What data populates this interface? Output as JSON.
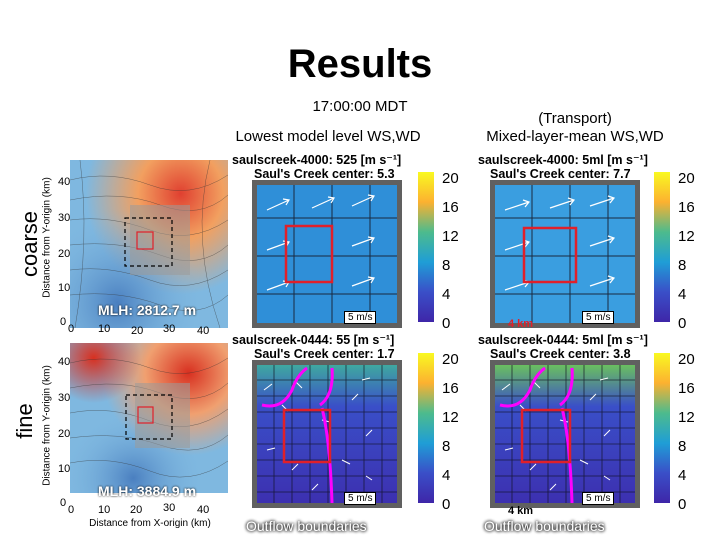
{
  "title": "Results",
  "time": "17:00:00 MDT",
  "columns": {
    "lowest": "Lowest model level WS,WD",
    "transport_line1": "(Transport)",
    "transport_line2": "Mixed-layer-mean WS,WD"
  },
  "rows": {
    "coarse": "coarse",
    "fine": "fine"
  },
  "axis": {
    "y_label": "Distance from Y-origin (km)",
    "x_label": "Distance from X-origin (km)",
    "ticks_coarse_y": [
      "40",
      "30",
      "20",
      "10",
      "0"
    ],
    "ticks_fine_y": [
      "40",
      "30",
      "20",
      "10",
      "0"
    ],
    "ticks_coarse_x": [
      "0",
      "10",
      "20",
      "30",
      "40"
    ],
    "ticks_fine_x": [
      "0",
      "10",
      "20",
      "30",
      "40"
    ]
  },
  "mlh": {
    "coarse": "MLH: 2812.7 m",
    "fine": "MLH: 3884.9 m"
  },
  "panels": {
    "coarse_lowest_t1": "saulscreek-4000: 525 [m s⁻¹]",
    "coarse_lowest_t2": "Saul's Creek center:  5.3",
    "coarse_ml_t1": "saulscreek-4000: 5ml [m s⁻¹]",
    "coarse_ml_t2": "Saul's Creek center:  7.7",
    "fine_lowest_t1": "saulscreek-0444: 55 [m s⁻¹]",
    "fine_lowest_t2": "Saul's Creek center:  1.7",
    "fine_ml_t1": "saulscreek-0444: 5ml [m s⁻¹]",
    "fine_ml_t2": "Saul's Creek center:  3.8"
  },
  "colorbar_ticks": [
    "20",
    "16",
    "12",
    "8",
    "4",
    "0"
  ],
  "scale_label": "5 m/s",
  "km_label": "4 km",
  "outflow_label": "Outflow boundaries",
  "colors": {
    "boundary": "#ff00ff",
    "box": "#e0202a"
  }
}
